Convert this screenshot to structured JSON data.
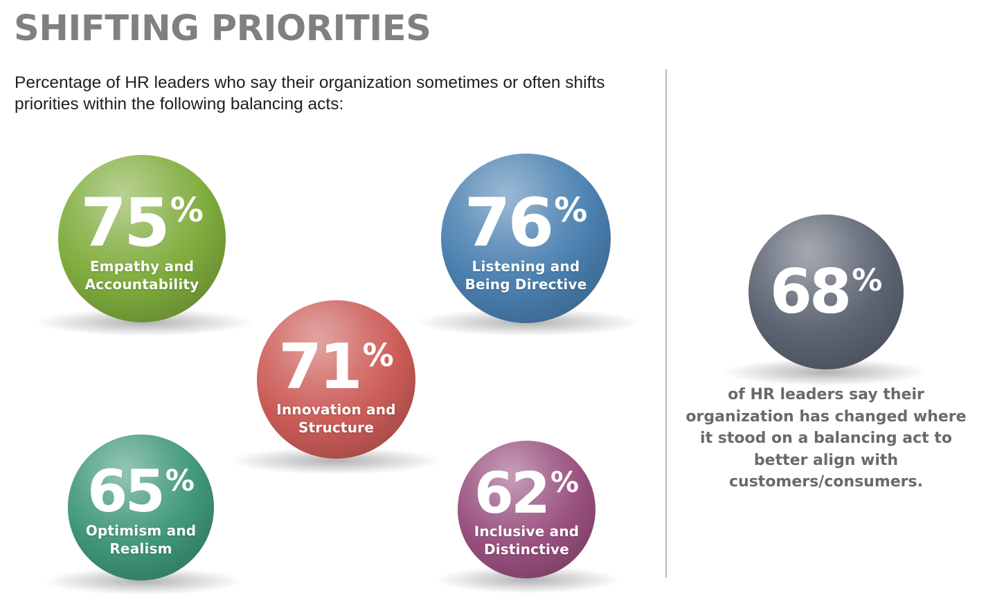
{
  "title": "SHIFTING PRIORITIES",
  "subtitle": "Percentage of HR leaders who say their organization sometimes or often shifts priorities within the following balancing acts:",
  "chart_data": [
    {
      "type": "bubble-stat",
      "percent_sign": "%",
      "categories": [
        "Empathy and Accountability",
        "Listening and Being Directive",
        "Innovation and Structure",
        "Optimism and Realism",
        "Inclusive and Distinctive"
      ],
      "values": [
        75,
        76,
        71,
        65,
        62
      ],
      "colors": [
        "#7fac3c",
        "#4a80b0",
        "#cc5c58",
        "#3f9778",
        "#99507f"
      ]
    },
    {
      "type": "bubble-stat",
      "percent_sign": "%",
      "values": [
        68
      ],
      "colors": [
        "#5c6472"
      ],
      "note": "of HR leaders say their organization has changed where it stood on a balancing act to better align with customers/consumers."
    }
  ]
}
